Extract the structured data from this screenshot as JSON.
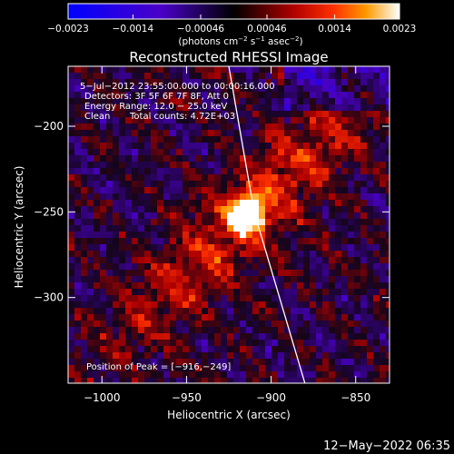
{
  "chart_data": {
    "type": "heatmap",
    "title": "Reconstructed RHESSI Image",
    "xlabel": "Heliocentric X (arcsec)",
    "ylabel": "Heliocentric Y (arcsec)",
    "xlim": [
      -1020,
      -830
    ],
    "ylim": [
      -350,
      -165
    ],
    "x_ticks": [
      -1000,
      -950,
      -900,
      -850
    ],
    "y_ticks": [
      -200,
      -250,
      -300
    ],
    "x_tick_labels": [
      "−1000",
      "−950",
      "−900",
      "−850"
    ],
    "y_tick_labels": [
      "−200",
      "−250",
      "−300"
    ],
    "colorbar": {
      "min": -0.0023,
      "max": 0.0023,
      "ticks": [
        -0.0023,
        -0.0014,
        -0.00046,
        0.00046,
        0.0014,
        0.0023
      ],
      "tick_labels": [
        "−0.0023",
        "−0.0014",
        "−0.00046",
        "0.00046",
        "0.0014",
        "0.0023"
      ],
      "units_label": "(photons cm",
      "units_exp1": "−2",
      "units_mid": " s",
      "units_exp2": "−1",
      "units_end": " asec",
      "units_exp3": "−2",
      "units_close": ")"
    },
    "annotations": {
      "time_range": "5−Jul−2012 23:55:00.000 to 00:00:16.000",
      "detectors": "Detectors: 3F 5F 6F 7F 8F, Att 0",
      "energy_range": "Energy Range: 12.0 − 25.0 keV",
      "clean_label": "Clean",
      "total_counts": "Total counts: 4.72E+03",
      "peak_position": "Position of Peak = [−916,−249]"
    },
    "peak": {
      "x": -916,
      "y": -249
    },
    "limb_arc": [
      [
        -925,
        -165
      ],
      [
        -910,
        -250
      ],
      [
        -880,
        -350
      ]
    ]
  },
  "footer": {
    "timestamp": "12−May−2022 06:35"
  }
}
